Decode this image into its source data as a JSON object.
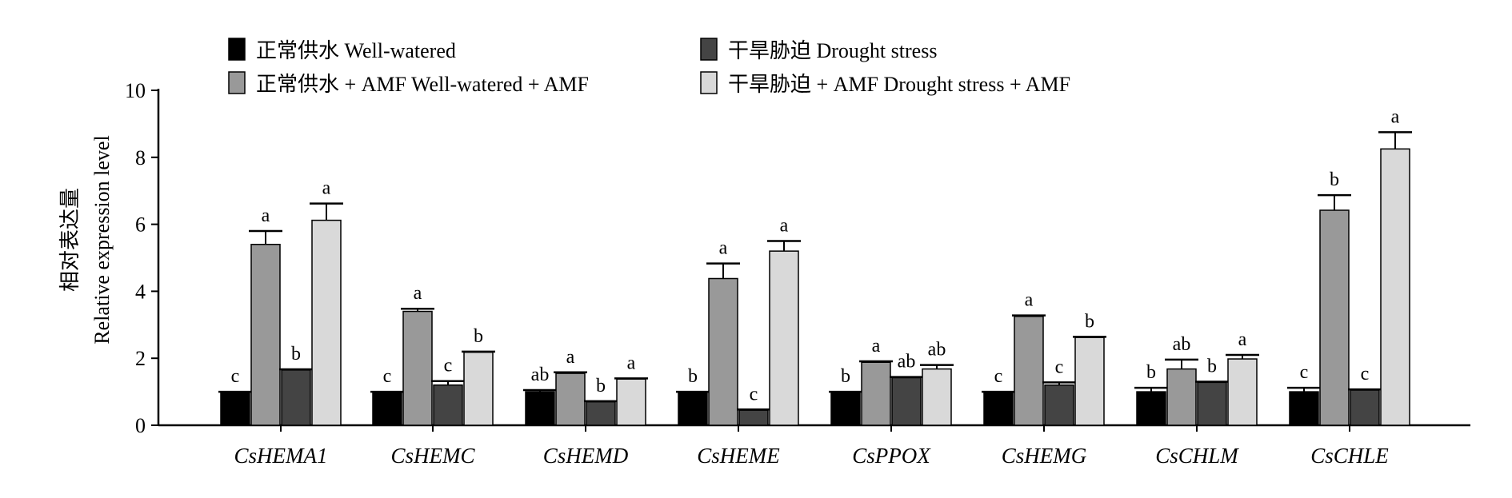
{
  "chart_data": {
    "type": "bar",
    "ylabel_cn": "相对表达量",
    "ylabel_en": "Relative expression level",
    "ylim": [
      0,
      10
    ],
    "yticks": [
      0,
      2,
      4,
      6,
      8,
      10
    ],
    "categories": [
      "CsHEMA1",
      "CsHEMC",
      "CsHEMD",
      "CsHEME",
      "CsPPOX",
      "CsHEMG",
      "CsCHLM",
      "CsCHLE"
    ],
    "series": [
      {
        "name": "正常供水 Well-watered",
        "color": "#000000",
        "values": [
          1.0,
          1.0,
          1.0,
          1.0,
          1.0,
          1.0,
          1.0,
          1.0
        ],
        "errors": [
          0.0,
          0.0,
          0.05,
          0.0,
          0.0,
          0.0,
          0.12,
          0.12
        ],
        "labels": [
          "c",
          "c",
          "ab",
          "b",
          "b",
          "c",
          "b",
          "c"
        ]
      },
      {
        "name": "正常供水 + AMF  Well-watered + AMF",
        "color": "#999999",
        "values": [
          5.4,
          3.4,
          1.55,
          4.38,
          1.88,
          3.25,
          1.68,
          6.42
        ],
        "errors": [
          0.4,
          0.08,
          0.03,
          0.45,
          0.03,
          0.03,
          0.28,
          0.45
        ],
        "labels": [
          "a",
          "a",
          "a",
          "a",
          "a",
          "a",
          "ab",
          "b"
        ]
      },
      {
        "name": "干旱胁迫  Drought stress",
        "color": "#444444",
        "values": [
          1.65,
          1.2,
          0.7,
          0.45,
          1.42,
          1.2,
          1.28,
          1.05
        ],
        "errors": [
          0.02,
          0.12,
          0.02,
          0.02,
          0.02,
          0.08,
          0.02,
          0.02
        ],
        "labels": [
          "b",
          "c",
          "b",
          "c",
          "ab",
          "c",
          "b",
          "c"
        ]
      },
      {
        "name": "干旱胁迫 + AMF  Drought stress + AMF",
        "color": "#d9d9d9",
        "values": [
          6.12,
          2.18,
          1.38,
          5.2,
          1.68,
          2.62,
          1.98,
          8.25
        ],
        "errors": [
          0.5,
          0.02,
          0.02,
          0.3,
          0.12,
          0.02,
          0.12,
          0.5
        ],
        "labels": [
          "a",
          "b",
          "a",
          "a",
          "ab",
          "b",
          "a",
          "a"
        ]
      }
    ],
    "legend": "top"
  }
}
